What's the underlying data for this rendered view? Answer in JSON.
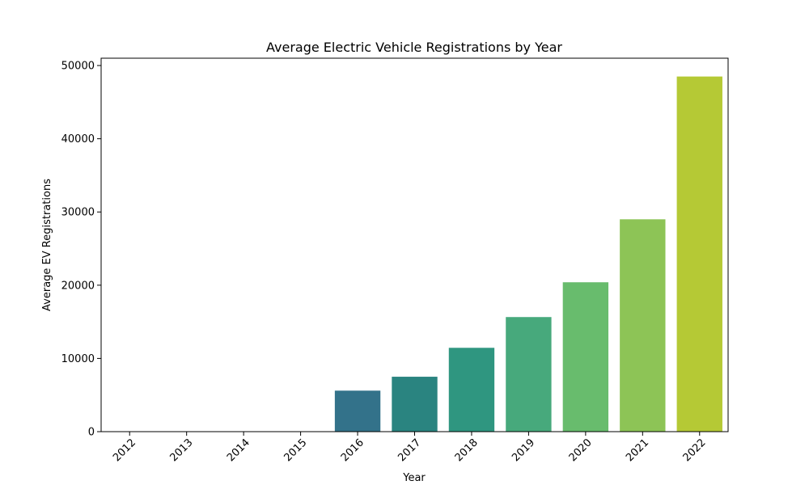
{
  "chart_data": {
    "type": "bar",
    "title": "Average Electric Vehicle Registrations by Year",
    "xlabel": "Year",
    "ylabel": "Average EV Registrations",
    "categories": [
      "2012",
      "2013",
      "2014",
      "2015",
      "2016",
      "2017",
      "2018",
      "2019",
      "2020",
      "2021",
      "2022"
    ],
    "values": [
      0,
      0,
      0,
      0,
      5600,
      7500,
      11450,
      15650,
      20400,
      29000,
      48500
    ],
    "ylim": [
      0,
      51000
    ],
    "yticks": [
      0,
      10000,
      20000,
      30000,
      40000,
      50000
    ],
    "grid": false,
    "legend": "none",
    "colors": [
      "#472d7b",
      "#3b528b",
      "#2c728e",
      "#21918c",
      "#33728a",
      "#2a8480",
      "#2f9680",
      "#47a97c",
      "#68bc6d",
      "#8dc456",
      "#b5c935"
    ]
  }
}
